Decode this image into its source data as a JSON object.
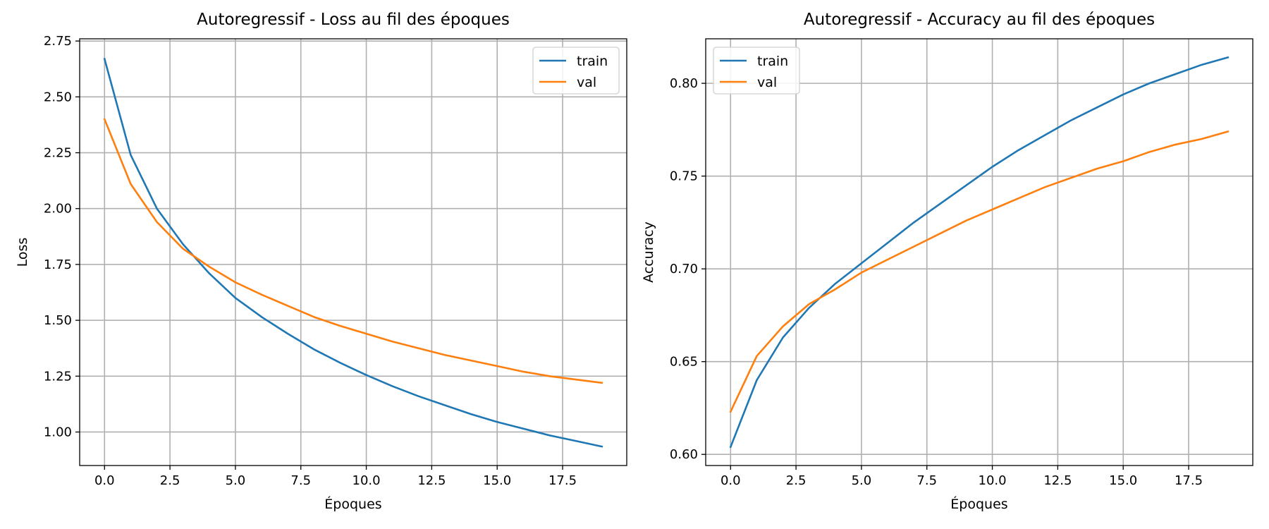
{
  "chart_data": [
    {
      "type": "line",
      "title": "Autoregressif - Loss au fil des époques",
      "xlabel": "Époques",
      "ylabel": "Loss",
      "xlim": [
        -0.95,
        19.95
      ],
      "ylim": [
        0.85,
        2.76
      ],
      "xticks": [
        0.0,
        2.5,
        5.0,
        7.5,
        10.0,
        12.5,
        15.0,
        17.5
      ],
      "xtick_labels": [
        "0.0",
        "2.5",
        "5.0",
        "7.5",
        "10.0",
        "12.5",
        "15.0",
        "17.5"
      ],
      "yticks": [
        1.0,
        1.25,
        1.5,
        1.75,
        2.0,
        2.25,
        2.5,
        2.75
      ],
      "ytick_labels": [
        "1.00",
        "1.25",
        "1.50",
        "1.75",
        "2.00",
        "2.25",
        "2.50",
        "2.75"
      ],
      "grid": true,
      "legend_position": "top-right",
      "x": [
        0,
        1,
        2,
        3,
        4,
        5,
        6,
        7,
        8,
        9,
        10,
        11,
        12,
        13,
        14,
        15,
        16,
        17,
        18,
        19
      ],
      "series": [
        {
          "name": "train",
          "color": "#1f77b4",
          "values": [
            2.67,
            2.24,
            2.0,
            1.84,
            1.71,
            1.6,
            1.515,
            1.44,
            1.37,
            1.31,
            1.255,
            1.205,
            1.16,
            1.12,
            1.08,
            1.045,
            1.015,
            0.985,
            0.96,
            0.935
          ]
        },
        {
          "name": "val",
          "color": "#ff7f0e",
          "values": [
            2.4,
            2.11,
            1.94,
            1.82,
            1.74,
            1.67,
            1.615,
            1.565,
            1.515,
            1.475,
            1.44,
            1.405,
            1.375,
            1.345,
            1.32,
            1.295,
            1.27,
            1.25,
            1.235,
            1.22
          ]
        }
      ]
    },
    {
      "type": "line",
      "title": "Autoregressif - Accuracy au fil des époques",
      "xlabel": "Époques",
      "ylabel": "Accuracy",
      "xlim": [
        -0.95,
        19.95
      ],
      "ylim": [
        0.594,
        0.824
      ],
      "xticks": [
        0.0,
        2.5,
        5.0,
        7.5,
        10.0,
        12.5,
        15.0,
        17.5
      ],
      "xtick_labels": [
        "0.0",
        "2.5",
        "5.0",
        "7.5",
        "10.0",
        "12.5",
        "15.0",
        "17.5"
      ],
      "yticks": [
        0.6,
        0.65,
        0.7,
        0.75,
        0.8
      ],
      "ytick_labels": [
        "0.60",
        "0.65",
        "0.70",
        "0.75",
        "0.80"
      ],
      "grid": true,
      "legend_position": "top-left",
      "x": [
        0,
        1,
        2,
        3,
        4,
        5,
        6,
        7,
        8,
        9,
        10,
        11,
        12,
        13,
        14,
        15,
        16,
        17,
        18,
        19
      ],
      "series": [
        {
          "name": "train",
          "color": "#1f77b4",
          "values": [
            0.604,
            0.64,
            0.663,
            0.679,
            0.692,
            0.703,
            0.714,
            0.725,
            0.735,
            0.745,
            0.755,
            0.764,
            0.772,
            0.78,
            0.787,
            0.794,
            0.8,
            0.805,
            0.81,
            0.814
          ]
        },
        {
          "name": "val",
          "color": "#ff7f0e",
          "values": [
            0.623,
            0.653,
            0.669,
            0.681,
            0.689,
            0.698,
            0.705,
            0.712,
            0.719,
            0.726,
            0.732,
            0.738,
            0.744,
            0.749,
            0.754,
            0.758,
            0.763,
            0.767,
            0.77,
            0.774
          ]
        }
      ]
    }
  ]
}
